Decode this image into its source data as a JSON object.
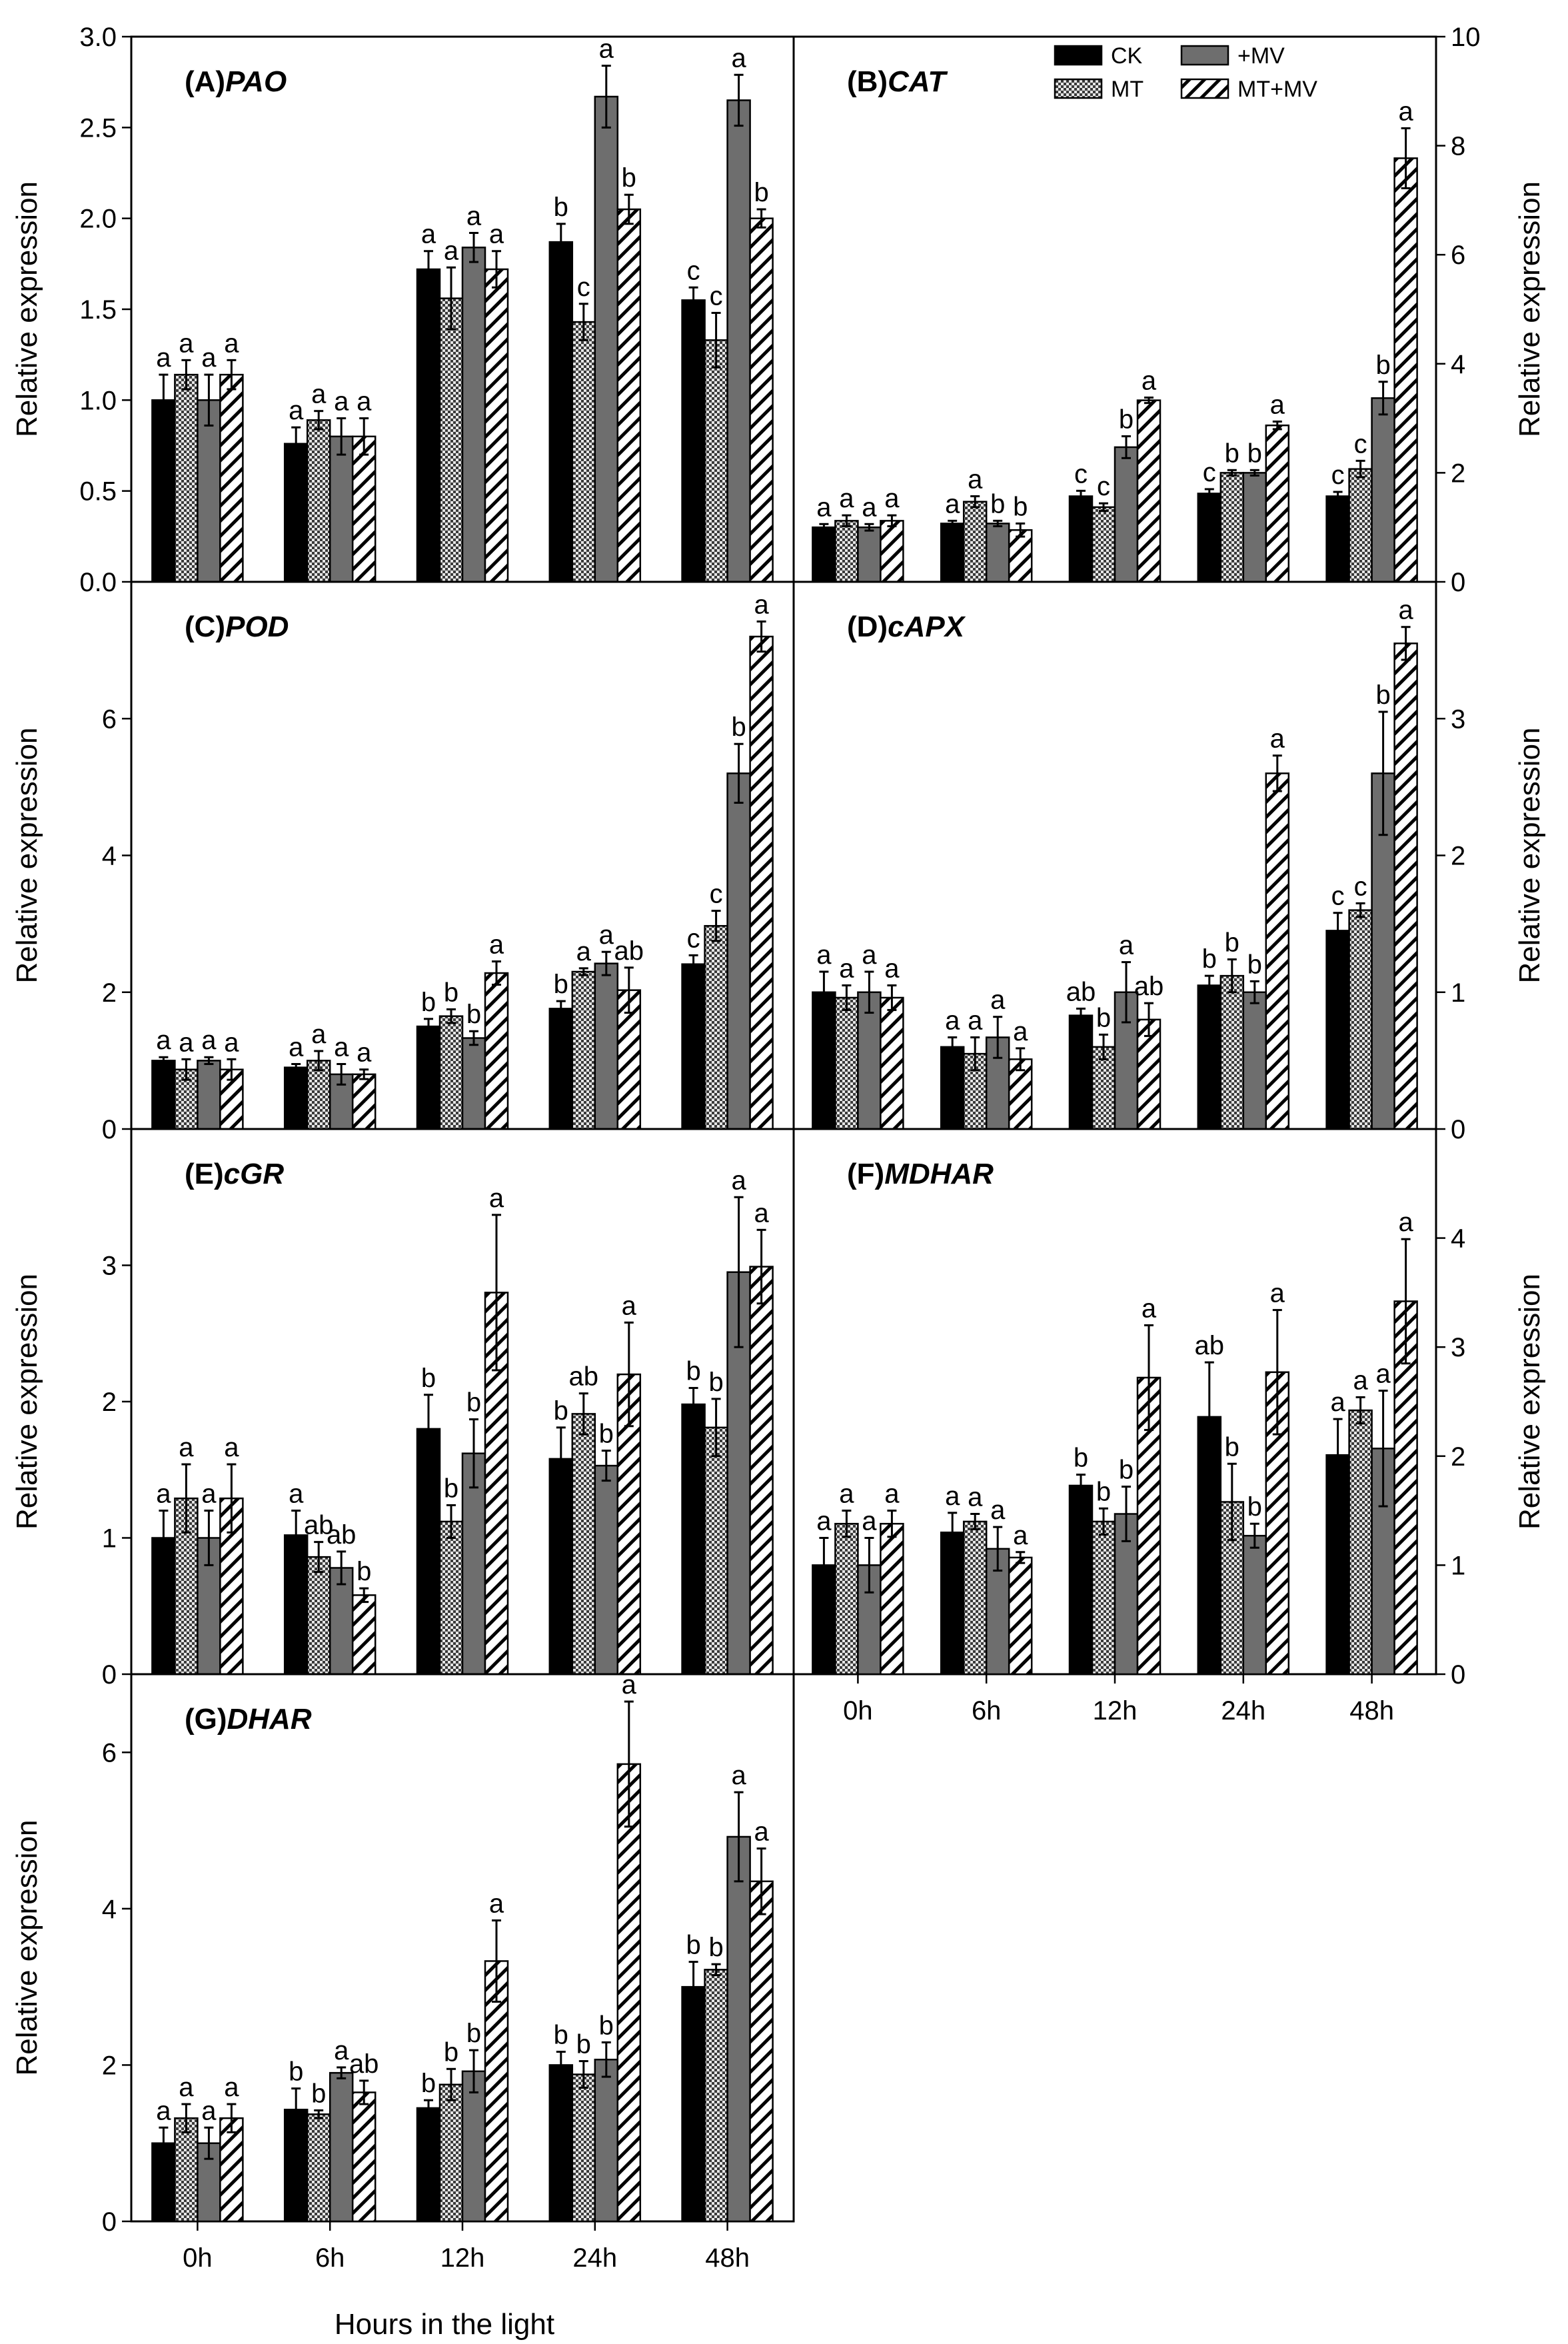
{
  "figure": {
    "xlabel": "Hours in the light",
    "series_names": [
      "CK",
      "MT",
      "+MV",
      "MT+MV"
    ],
    "series_fills": {
      "CK": "#000000",
      "MT": "#cfcfcf",
      "+MV": "#6e6e6e",
      "MT+MV": "#ffffff"
    }
  },
  "chart_data": [
    {
      "id": "A",
      "type": "bar",
      "label": "(A)",
      "gene": "PAO",
      "ylabel": "Relative expression",
      "ylim": [
        0,
        3.0
      ],
      "yticks": [
        "0.0",
        "0.5",
        "1.0",
        "1.5",
        "2.0",
        "2.5",
        "3.0"
      ],
      "categories": [
        "0h",
        "6h",
        "12h",
        "24h",
        "48h"
      ],
      "series": [
        {
          "name": "CK",
          "values": [
            1.0,
            0.76,
            1.72,
            1.87,
            1.55
          ],
          "errors": [
            0.14,
            0.09,
            0.1,
            0.1,
            0.07
          ],
          "letters": [
            "a",
            "a",
            "a",
            "b",
            "c"
          ]
        },
        {
          "name": "MT",
          "values": [
            1.14,
            0.89,
            1.56,
            1.43,
            1.33
          ],
          "errors": [
            0.08,
            0.05,
            0.17,
            0.1,
            0.15
          ],
          "letters": [
            "a",
            "a",
            "a",
            "c",
            "c"
          ]
        },
        {
          "name": "+MV",
          "values": [
            1.0,
            0.8,
            1.84,
            2.67,
            2.65
          ],
          "errors": [
            0.14,
            0.1,
            0.08,
            0.17,
            0.14
          ],
          "letters": [
            "a",
            "a",
            "a",
            "a",
            "a"
          ]
        },
        {
          "name": "MT+MV",
          "values": [
            1.14,
            0.8,
            1.72,
            2.05,
            2.0
          ],
          "errors": [
            0.08,
            0.1,
            0.1,
            0.08,
            0.05
          ],
          "letters": [
            "a",
            "a",
            "a",
            "b",
            "b"
          ]
        }
      ]
    },
    {
      "id": "B",
      "type": "bar",
      "label": "(B)",
      "gene": "CAT",
      "ylabel": "Relative expression",
      "ylim": [
        0,
        10
      ],
      "yticks": [
        "0",
        "2",
        "4",
        "6",
        "8",
        "10"
      ],
      "categories": [
        "0h",
        "6h",
        "12h",
        "24h",
        "48h"
      ],
      "legend": "top-right",
      "series": [
        {
          "name": "CK",
          "values": [
            1.0,
            1.07,
            1.57,
            1.62,
            1.57
          ],
          "errors": [
            0.06,
            0.05,
            0.1,
            0.08,
            0.08
          ],
          "letters": [
            "a",
            "a",
            "c",
            "c",
            "c"
          ]
        },
        {
          "name": "MT",
          "values": [
            1.12,
            1.47,
            1.37,
            2.0,
            2.07
          ],
          "errors": [
            0.1,
            0.1,
            0.07,
            0.05,
            0.15
          ],
          "letters": [
            "a",
            "a",
            "c",
            "b",
            "c"
          ]
        },
        {
          "name": "+MV",
          "values": [
            1.0,
            1.07,
            2.47,
            2.0,
            3.37
          ],
          "errors": [
            0.06,
            0.05,
            0.2,
            0.05,
            0.3
          ],
          "letters": [
            "a",
            "b",
            "b",
            "b",
            "b"
          ]
        },
        {
          "name": "MT+MV",
          "values": [
            1.12,
            0.95,
            3.33,
            2.87,
            7.77
          ],
          "errors": [
            0.1,
            0.12,
            0.05,
            0.07,
            0.55
          ],
          "letters": [
            "a",
            "b",
            "a",
            "a",
            "a"
          ]
        }
      ]
    },
    {
      "id": "C",
      "type": "bar",
      "label": "(C)",
      "gene": "POD",
      "ylabel": "Relative expression",
      "ylim": [
        0,
        8
      ],
      "yticks": [
        "0",
        "2",
        "4",
        "6"
      ],
      "categories": [
        "0h",
        "6h",
        "12h",
        "24h",
        "48h"
      ],
      "series": [
        {
          "name": "CK",
          "values": [
            1.0,
            0.9,
            1.5,
            1.76,
            2.41
          ],
          "errors": [
            0.05,
            0.05,
            0.11,
            0.11,
            0.13
          ],
          "letters": [
            "a",
            "a",
            "b",
            "b",
            "c"
          ]
        },
        {
          "name": "MT",
          "values": [
            0.87,
            1.0,
            1.65,
            2.3,
            2.97
          ],
          "errors": [
            0.15,
            0.14,
            0.1,
            0.05,
            0.22
          ],
          "letters": [
            "a",
            "a",
            "b",
            "a",
            "c"
          ]
        },
        {
          "name": "+MV",
          "values": [
            1.0,
            0.8,
            1.33,
            2.42,
            5.2
          ],
          "errors": [
            0.05,
            0.15,
            0.1,
            0.17,
            0.43
          ],
          "letters": [
            "a",
            "a",
            "b",
            "a",
            "b"
          ]
        },
        {
          "name": "MT+MV",
          "values": [
            0.87,
            0.8,
            2.28,
            2.03,
            7.2
          ],
          "errors": [
            0.15,
            0.07,
            0.17,
            0.33,
            0.22
          ],
          "letters": [
            "a",
            "a",
            "a",
            "ab",
            "a"
          ]
        }
      ]
    },
    {
      "id": "D",
      "type": "bar",
      "label": "(D)",
      "gene": "cAPX",
      "ylabel": "Relative expression",
      "ylim": [
        0,
        4
      ],
      "yticks": [
        "0",
        "1",
        "2",
        "3"
      ],
      "categories": [
        "0h",
        "6h",
        "12h",
        "24h",
        "48h"
      ],
      "series": [
        {
          "name": "CK",
          "values": [
            1.0,
            0.6,
            0.83,
            1.05,
            1.45
          ],
          "errors": [
            0.15,
            0.07,
            0.05,
            0.07,
            0.13
          ],
          "letters": [
            "a",
            "a",
            "ab",
            "b",
            "c"
          ]
        },
        {
          "name": "MT",
          "values": [
            0.96,
            0.55,
            0.6,
            1.12,
            1.6
          ],
          "errors": [
            0.09,
            0.12,
            0.09,
            0.12,
            0.05
          ],
          "letters": [
            "a",
            "a",
            "b",
            "b",
            "c"
          ]
        },
        {
          "name": "+MV",
          "values": [
            1.0,
            0.67,
            1.0,
            1.0,
            2.6
          ],
          "errors": [
            0.15,
            0.15,
            0.22,
            0.08,
            0.45
          ],
          "letters": [
            "a",
            "a",
            "a",
            "b",
            "b"
          ]
        },
        {
          "name": "MT+MV",
          "values": [
            0.96,
            0.51,
            0.8,
            2.6,
            3.55
          ],
          "errors": [
            0.09,
            0.08,
            0.12,
            0.13,
            0.12
          ],
          "letters": [
            "a",
            "a",
            "ab",
            "a",
            "a"
          ]
        }
      ]
    },
    {
      "id": "E",
      "type": "bar",
      "label": "(E)",
      "gene": "cGR",
      "ylabel": "Relative expression",
      "ylim": [
        0,
        4
      ],
      "yticks": [
        "0",
        "1",
        "2",
        "3"
      ],
      "categories": [
        "0h",
        "6h",
        "12h",
        "24h",
        "48h"
      ],
      "series": [
        {
          "name": "CK",
          "values": [
            1.0,
            1.02,
            1.8,
            1.58,
            1.98
          ],
          "errors": [
            0.2,
            0.18,
            0.25,
            0.23,
            0.12
          ],
          "letters": [
            "a",
            "a",
            "b",
            "b",
            "b"
          ]
        },
        {
          "name": "MT",
          "values": [
            1.29,
            0.86,
            1.12,
            1.91,
            1.81
          ],
          "errors": [
            0.25,
            0.11,
            0.12,
            0.15,
            0.21
          ],
          "letters": [
            "a",
            "ab",
            "b",
            "ab",
            "b"
          ]
        },
        {
          "name": "+MV",
          "values": [
            1.0,
            0.78,
            1.62,
            1.53,
            2.95
          ],
          "errors": [
            0.2,
            0.12,
            0.25,
            0.11,
            0.55
          ],
          "letters": [
            "a",
            "ab",
            "b",
            "b",
            "a"
          ]
        },
        {
          "name": "MT+MV",
          "values": [
            1.29,
            0.58,
            2.8,
            2.2,
            2.99
          ],
          "errors": [
            0.25,
            0.05,
            0.57,
            0.38,
            0.27
          ],
          "letters": [
            "a",
            "b",
            "a",
            "a",
            "a"
          ]
        }
      ]
    },
    {
      "id": "F",
      "type": "bar",
      "label": "(F)",
      "gene": "MDHAR",
      "ylabel": "Relative expression",
      "ylim": [
        0,
        5
      ],
      "yticks": [
        "0",
        "1",
        "2",
        "3",
        "4"
      ],
      "categories": [
        "0h",
        "6h",
        "12h",
        "24h",
        "48h"
      ],
      "series": [
        {
          "name": "CK",
          "values": [
            1.0,
            1.3,
            1.73,
            2.36,
            2.01
          ],
          "errors": [
            0.25,
            0.18,
            0.1,
            0.5,
            0.33
          ],
          "letters": [
            "a",
            "a",
            "b",
            "ab",
            "a"
          ]
        },
        {
          "name": "MT",
          "values": [
            1.38,
            1.4,
            1.4,
            1.58,
            2.42
          ],
          "errors": [
            0.12,
            0.07,
            0.12,
            0.35,
            0.12
          ],
          "letters": [
            "a",
            "a",
            "b",
            "b",
            "a"
          ]
        },
        {
          "name": "+MV",
          "values": [
            1.0,
            1.15,
            1.47,
            1.27,
            2.07
          ],
          "errors": [
            0.25,
            0.2,
            0.25,
            0.11,
            0.53
          ],
          "letters": [
            "a",
            "a",
            "b",
            "b",
            "a"
          ]
        },
        {
          "name": "MT+MV",
          "values": [
            1.38,
            1.07,
            2.72,
            2.77,
            3.42
          ],
          "errors": [
            0.12,
            0.05,
            0.48,
            0.57,
            0.57
          ],
          "letters": [
            "a",
            "a",
            "a",
            "a",
            "a"
          ]
        }
      ]
    },
    {
      "id": "G",
      "type": "bar",
      "label": "(G)",
      "gene": "DHAR",
      "ylabel": "Relative expression",
      "ylim": [
        0,
        7
      ],
      "yticks": [
        "0",
        "2",
        "4",
        "6"
      ],
      "categories": [
        "0h",
        "6h",
        "12h",
        "24h",
        "48h"
      ],
      "series": [
        {
          "name": "CK",
          "values": [
            1.0,
            1.43,
            1.45,
            2.0,
            3.0
          ],
          "errors": [
            0.2,
            0.27,
            0.1,
            0.17,
            0.32
          ],
          "letters": [
            "a",
            "b",
            "b",
            "b",
            "b"
          ]
        },
        {
          "name": "MT",
          "values": [
            1.32,
            1.37,
            1.75,
            1.88,
            3.22
          ],
          "errors": [
            0.18,
            0.05,
            0.2,
            0.17,
            0.07
          ],
          "letters": [
            "a",
            "b",
            "b",
            "b",
            "b"
          ]
        },
        {
          "name": "+MV",
          "values": [
            1.0,
            1.9,
            1.92,
            2.07,
            4.92
          ],
          "errors": [
            0.2,
            0.07,
            0.27,
            0.22,
            0.57
          ],
          "letters": [
            "a",
            "a",
            "b",
            "b",
            "a"
          ]
        },
        {
          "name": "MT+MV",
          "values": [
            1.32,
            1.65,
            3.33,
            5.85,
            4.35
          ],
          "errors": [
            0.18,
            0.15,
            0.52,
            0.8,
            0.42
          ],
          "letters": [
            "a",
            "ab",
            "a",
            "a",
            "a"
          ]
        }
      ]
    }
  ]
}
